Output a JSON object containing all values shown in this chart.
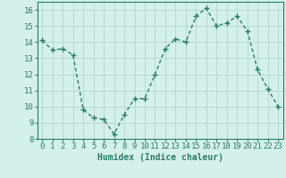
{
  "x": [
    0,
    1,
    2,
    3,
    4,
    5,
    6,
    7,
    8,
    9,
    10,
    11,
    12,
    13,
    14,
    15,
    16,
    17,
    18,
    19,
    20,
    21,
    22,
    23
  ],
  "y": [
    14.1,
    13.5,
    13.6,
    13.2,
    9.8,
    9.3,
    9.2,
    8.3,
    9.5,
    10.5,
    10.5,
    12.0,
    13.6,
    14.2,
    14.0,
    15.6,
    16.1,
    15.0,
    15.2,
    15.6,
    14.7,
    12.3,
    11.1,
    10.0
  ],
  "line_color": "#2d7a6a",
  "marker_color": "#2d7a6a",
  "bg_color": "#d4f0eb",
  "grid_color": "#b8d8d4",
  "xlabel": "Humidex (Indice chaleur)",
  "ylim": [
    8,
    16.5
  ],
  "xlim": [
    -0.5,
    23.5
  ],
  "yticks": [
    8,
    9,
    10,
    11,
    12,
    13,
    14,
    15,
    16
  ],
  "xticks": [
    0,
    1,
    2,
    3,
    4,
    5,
    6,
    7,
    8,
    9,
    10,
    11,
    12,
    13,
    14,
    15,
    16,
    17,
    18,
    19,
    20,
    21,
    22,
    23
  ],
  "xlabel_fontsize": 7,
  "tick_fontsize": 6.5,
  "marker_size": 2.5,
  "line_width": 1.0
}
